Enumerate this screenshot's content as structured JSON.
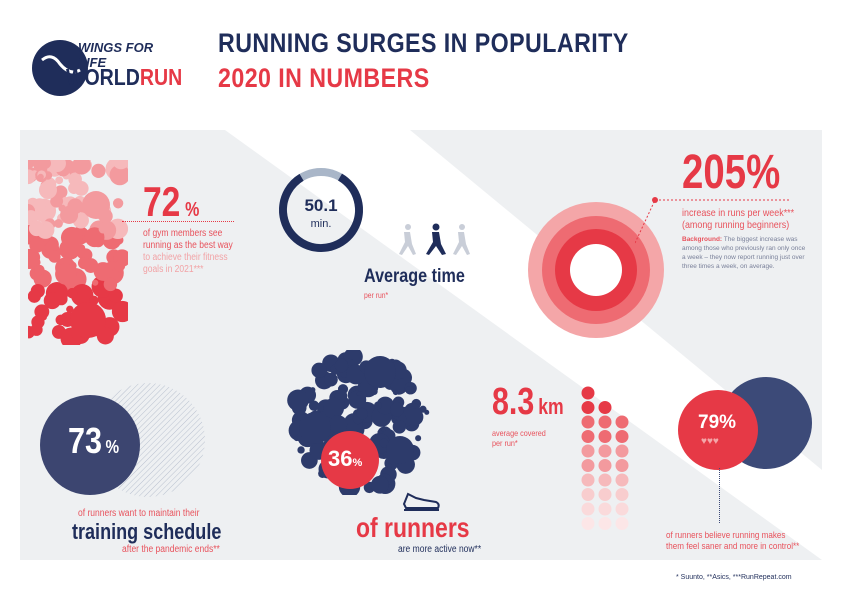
{
  "logo": {
    "line1": "WINGS FOR LIFE",
    "line2a": "WORLD",
    "line2b": "RUN"
  },
  "header": {
    "title": "RUNNING SURGES IN POPULARITY",
    "subtitle": "2020 IN NUMBERS"
  },
  "stat_gym": {
    "value": "72",
    "unit": "%",
    "text1": "of gym members see",
    "text2": "running as the best way",
    "text3": "to achieve their fitness",
    "text4": "goals in 2021***"
  },
  "stat_time": {
    "value": "50.1",
    "unit": "min.",
    "label": "Average time",
    "sub": "per run*",
    "fill_fraction": 0.83
  },
  "stat_increase": {
    "value": "205",
    "unit": "%",
    "text1": "increase in runs per week***",
    "text2": "(among running beginners)",
    "bg_label": "Background:",
    "bg_text": "The biggest increase was among those who previously ran only once a week – they now report running just over three times a week, on average."
  },
  "stat_schedule": {
    "value": "73",
    "unit": "%",
    "text": "of runners want to maintain their",
    "label": "training schedule",
    "sub": "after the pandemic ends**"
  },
  "stat_active": {
    "value": "36",
    "unit": "%",
    "label": "of runners",
    "sub": "are more active now**"
  },
  "stat_distance": {
    "value": "8.3",
    "unit": "km",
    "text1": "average covered",
    "text2": "per run*"
  },
  "stat_saner": {
    "value": "79%",
    "text1": "of runners believe running makes",
    "text2": "them feel saner and more in control**"
  },
  "footer": {
    "sources": "* Suunto, **Asics, ***RunRepeat.com"
  },
  "colors": {
    "navy": "#1f2d5a",
    "red": "#e63946",
    "pink": "#f2a3a6",
    "gray": "#eef0f2"
  }
}
